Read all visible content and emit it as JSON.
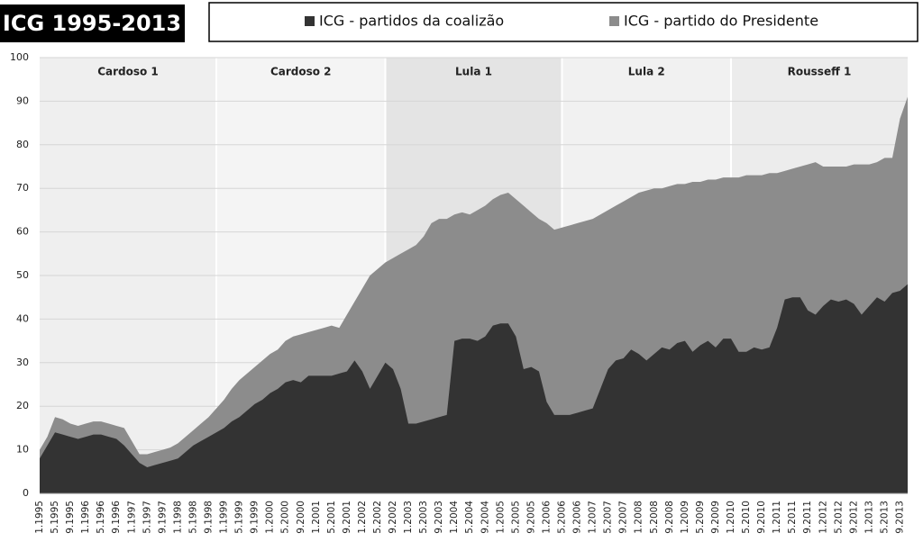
{
  "chart_data": {
    "type": "area",
    "title": "ICG 1995-2013",
    "periods": [
      "Cardoso 1",
      "Cardoso 2",
      "Lula 1",
      "Lula 2",
      "Rousseff 1"
    ],
    "categories": [
      "1.1995",
      null,
      "5.1995",
      null,
      "9.1995",
      null,
      "1.1996",
      null,
      "5.1996",
      null,
      "9.1996",
      null,
      "1.1997",
      null,
      "5.1997",
      null,
      "9.1997",
      null,
      "1.1998",
      null,
      "5.1998",
      null,
      "9.1998",
      null,
      "1.1999",
      null,
      "5.1999",
      null,
      "9.1999",
      null,
      "1.2000",
      null,
      "5.2000",
      null,
      "9.2000",
      null,
      "1.2001",
      null,
      "5.2001",
      null,
      "9.2001",
      null,
      "1.2002",
      null,
      "5.2002",
      null,
      "9.2002",
      null,
      "1.2003",
      null,
      "5.2003",
      null,
      "9.2003",
      null,
      "1.2004",
      null,
      "5.2004",
      null,
      "9.2004",
      null,
      "1.2005",
      null,
      "5.2005",
      null,
      "9.2005",
      null,
      "1.2006",
      null,
      "5.2006",
      null,
      "9.2006",
      null,
      "1.2007",
      null,
      "5.2007",
      null,
      "9.2007",
      null,
      "1.2008",
      null,
      "5.2008",
      null,
      "9.2008",
      null,
      "1.2009",
      null,
      "5.2009",
      null,
      "9.2009",
      null,
      "1.2010",
      null,
      "5.2010",
      null,
      "9.2010",
      null,
      "1.2011",
      null,
      "5.2011",
      null,
      "9.2011",
      null,
      "1.2012",
      null,
      "5.2012",
      null,
      "9.2012",
      null,
      "1.2013",
      null,
      "5.2013",
      null,
      "9.2013",
      null
    ],
    "series": [
      {
        "name": "ICG - partidos da coalizão",
        "color": "#333333",
        "values": [
          8,
          11,
          14,
          13.5,
          13,
          12.5,
          13,
          13.5,
          13.5,
          13,
          12.5,
          11,
          9,
          7,
          6,
          6.5,
          7,
          7.5,
          8,
          9.5,
          11,
          12,
          13,
          14,
          15,
          16.5,
          17.5,
          19,
          20.5,
          21.5,
          23,
          24,
          25.5,
          26,
          25.5,
          27,
          27,
          27,
          27,
          27.5,
          28,
          30.5,
          28,
          24,
          27,
          30,
          28.5,
          24,
          16,
          16,
          16.5,
          17,
          17.5,
          18,
          35,
          35.5,
          35.5,
          35,
          36,
          38.5,
          39,
          39,
          36,
          28.5,
          29,
          28,
          21,
          18,
          18,
          18,
          18.5,
          19,
          19.5,
          24,
          28.5,
          30.5,
          31,
          33,
          32,
          30.5,
          32,
          33.5,
          33,
          34.5,
          35,
          32.5,
          34,
          35,
          33.5,
          35.5,
          35.5,
          32.5,
          32.5,
          33.5,
          33,
          33.5,
          38,
          44.5,
          45,
          45,
          42,
          41,
          43,
          44.5,
          44,
          44.5,
          43.5,
          41,
          43,
          45,
          44,
          46,
          46.5,
          48
        ]
      },
      {
        "name": "ICG - partido do Presidente",
        "color": "#8c8c8c",
        "values": [
          10,
          13,
          17.5,
          17,
          16,
          15.5,
          16,
          16.5,
          16.5,
          16,
          15.5,
          15,
          12,
          9,
          9,
          9.5,
          10,
          10.5,
          11.5,
          13,
          14.5,
          16,
          17.5,
          19.5,
          21.5,
          24,
          26,
          27.5,
          29,
          30.5,
          32,
          33,
          35,
          36,
          36.5,
          37,
          37.5,
          38,
          38.5,
          38,
          41,
          44,
          47,
          50,
          51.5,
          53,
          54,
          55,
          56,
          57,
          59,
          62,
          63,
          63,
          64,
          64.5,
          64,
          65,
          66,
          67.5,
          68.5,
          69,
          67.5,
          66,
          64.5,
          63,
          62,
          60.5,
          61,
          61.5,
          62,
          62.5,
          63,
          64,
          65,
          66,
          67,
          68,
          69,
          69.5,
          70,
          70,
          70.5,
          71,
          71,
          71.5,
          71.5,
          72,
          72,
          72.5,
          72.5,
          72.5,
          73,
          73,
          73,
          73.5,
          73.5,
          74,
          74.5,
          75,
          75.5,
          76,
          75,
          75,
          75,
          75,
          75.5,
          75.5,
          75.5,
          76,
          77,
          77,
          86,
          91
        ]
      }
    ],
    "ylim": [
      0,
      100
    ],
    "yticks": [
      0,
      10,
      20,
      30,
      40,
      50,
      60,
      70,
      80,
      90,
      100
    ],
    "grid": true
  }
}
